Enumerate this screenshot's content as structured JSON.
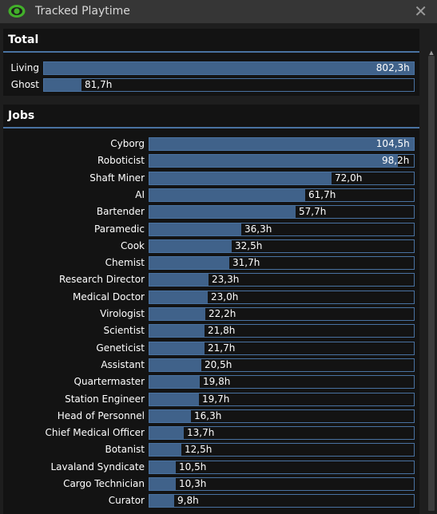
{
  "window": {
    "title": "Tracked Playtime",
    "close_glyph": "✕",
    "icon": "eye-icon",
    "accent": "#4972a1",
    "bar_fill": "#40628a"
  },
  "total": {
    "header": "Total",
    "max_hours": 802.3,
    "rows": [
      {
        "label": "Living",
        "value": 802.3,
        "display": "802,3h"
      },
      {
        "label": "Ghost",
        "value": 81.7,
        "display": "81,7h"
      }
    ]
  },
  "jobs": {
    "header": "Jobs",
    "max_hours": 104.5,
    "rows": [
      {
        "label": "Cyborg",
        "value": 104.5,
        "display": "104,5h"
      },
      {
        "label": "Roboticist",
        "value": 98.2,
        "display": "98,2h"
      },
      {
        "label": "Shaft Miner",
        "value": 72.0,
        "display": "72,0h"
      },
      {
        "label": "AI",
        "value": 61.7,
        "display": "61,7h"
      },
      {
        "label": "Bartender",
        "value": 57.7,
        "display": "57,7h"
      },
      {
        "label": "Paramedic",
        "value": 36.3,
        "display": "36,3h"
      },
      {
        "label": "Cook",
        "value": 32.5,
        "display": "32,5h"
      },
      {
        "label": "Chemist",
        "value": 31.7,
        "display": "31,7h"
      },
      {
        "label": "Research Director",
        "value": 23.3,
        "display": "23,3h"
      },
      {
        "label": "Medical Doctor",
        "value": 23.0,
        "display": "23,0h"
      },
      {
        "label": "Virologist",
        "value": 22.2,
        "display": "22,2h"
      },
      {
        "label": "Scientist",
        "value": 21.8,
        "display": "21,8h"
      },
      {
        "label": "Geneticist",
        "value": 21.7,
        "display": "21,7h"
      },
      {
        "label": "Assistant",
        "value": 20.5,
        "display": "20,5h"
      },
      {
        "label": "Quartermaster",
        "value": 19.8,
        "display": "19,8h"
      },
      {
        "label": "Station Engineer",
        "value": 19.7,
        "display": "19,7h"
      },
      {
        "label": "Head of Personnel",
        "value": 16.3,
        "display": "16,3h"
      },
      {
        "label": "Chief Medical Officer",
        "value": 13.7,
        "display": "13,7h"
      },
      {
        "label": "Botanist",
        "value": 12.5,
        "display": "12,5h"
      },
      {
        "label": "Lavaland Syndicate",
        "value": 10.5,
        "display": "10,5h"
      },
      {
        "label": "Cargo Technician",
        "value": 10.3,
        "display": "10,3h"
      },
      {
        "label": "Curator",
        "value": 9.8,
        "display": "9,8h"
      }
    ]
  }
}
